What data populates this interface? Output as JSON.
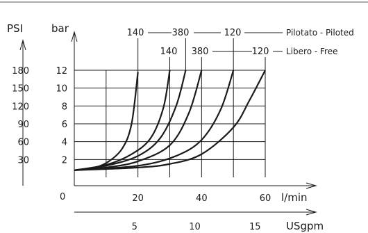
{
  "chart_data": {
    "type": "line",
    "x": {
      "label": "l/min",
      "ticks": [
        "0",
        "20",
        "40",
        "60"
      ],
      "tick_values": [
        0,
        20,
        40,
        60
      ],
      "range": [
        0,
        60
      ]
    },
    "x2": {
      "label": "USgpm",
      "ticks": [
        "5",
        "10",
        "15"
      ],
      "tick_values": [
        5,
        10,
        15
      ]
    },
    "y": {
      "label": "bar",
      "ticks": [
        "2",
        "4",
        "6",
        "8",
        "10",
        "12"
      ],
      "tick_values": [
        2,
        4,
        6,
        8,
        10,
        12
      ],
      "range": [
        0,
        12
      ]
    },
    "y2": {
      "label": "PSI",
      "ticks": [
        "30",
        "60",
        "90",
        "120",
        "150",
        "180"
      ],
      "tick_values": [
        30,
        60,
        90,
        120,
        150,
        180
      ]
    },
    "grid": true,
    "series": [
      {
        "name": "140",
        "group": "Pilotato - Piloted",
        "points": [
          [
            0,
            0.8
          ],
          [
            5,
            1.0
          ],
          [
            10,
            1.6
          ],
          [
            15,
            3.2
          ],
          [
            18,
            6.0
          ],
          [
            20,
            11.8
          ]
        ]
      },
      {
        "name": "140",
        "group": "Libero - Free",
        "points": [
          [
            0,
            0.8
          ],
          [
            10,
            1.4
          ],
          [
            18,
            2.6
          ],
          [
            24,
            4.4
          ],
          [
            28,
            7.8
          ],
          [
            30,
            12.0
          ]
        ]
      },
      {
        "name": "380",
        "group": "Pilotato - Piloted",
        "points": [
          [
            0,
            0.8
          ],
          [
            10,
            1.3
          ],
          [
            20,
            2.4
          ],
          [
            27,
            4.4
          ],
          [
            32,
            8.0
          ],
          [
            35,
            12.0
          ]
        ]
      },
      {
        "name": "380",
        "group": "Libero - Free",
        "points": [
          [
            0,
            0.8
          ],
          [
            10,
            1.1
          ],
          [
            20,
            1.8
          ],
          [
            30,
            3.6
          ],
          [
            36,
            7.2
          ],
          [
            40,
            12.0
          ]
        ]
      },
      {
        "name": "120",
        "group": "Pilotato - Piloted",
        "points": [
          [
            0,
            0.8
          ],
          [
            20,
            1.3
          ],
          [
            32,
            2.4
          ],
          [
            40,
            4.2
          ],
          [
            46,
            7.6
          ],
          [
            50,
            12.0
          ]
        ]
      },
      {
        "name": "120",
        "group": "Libero - Free",
        "points": [
          [
            0,
            0.8
          ],
          [
            20,
            1.1
          ],
          [
            30,
            1.5
          ],
          [
            40,
            2.6
          ],
          [
            50,
            5.6
          ],
          [
            55,
            8.6
          ],
          [
            60,
            12.0
          ]
        ]
      }
    ],
    "annotations": {
      "piloted": {
        "labels": [
          "140",
          "380",
          "120"
        ],
        "caption": "Pilotato - Piloted"
      },
      "free": {
        "labels": [
          "140",
          "380",
          "120"
        ],
        "caption": "Libero - Free"
      }
    },
    "line_color": "#1a1a1a",
    "grid_color": "#1a1a1a"
  }
}
